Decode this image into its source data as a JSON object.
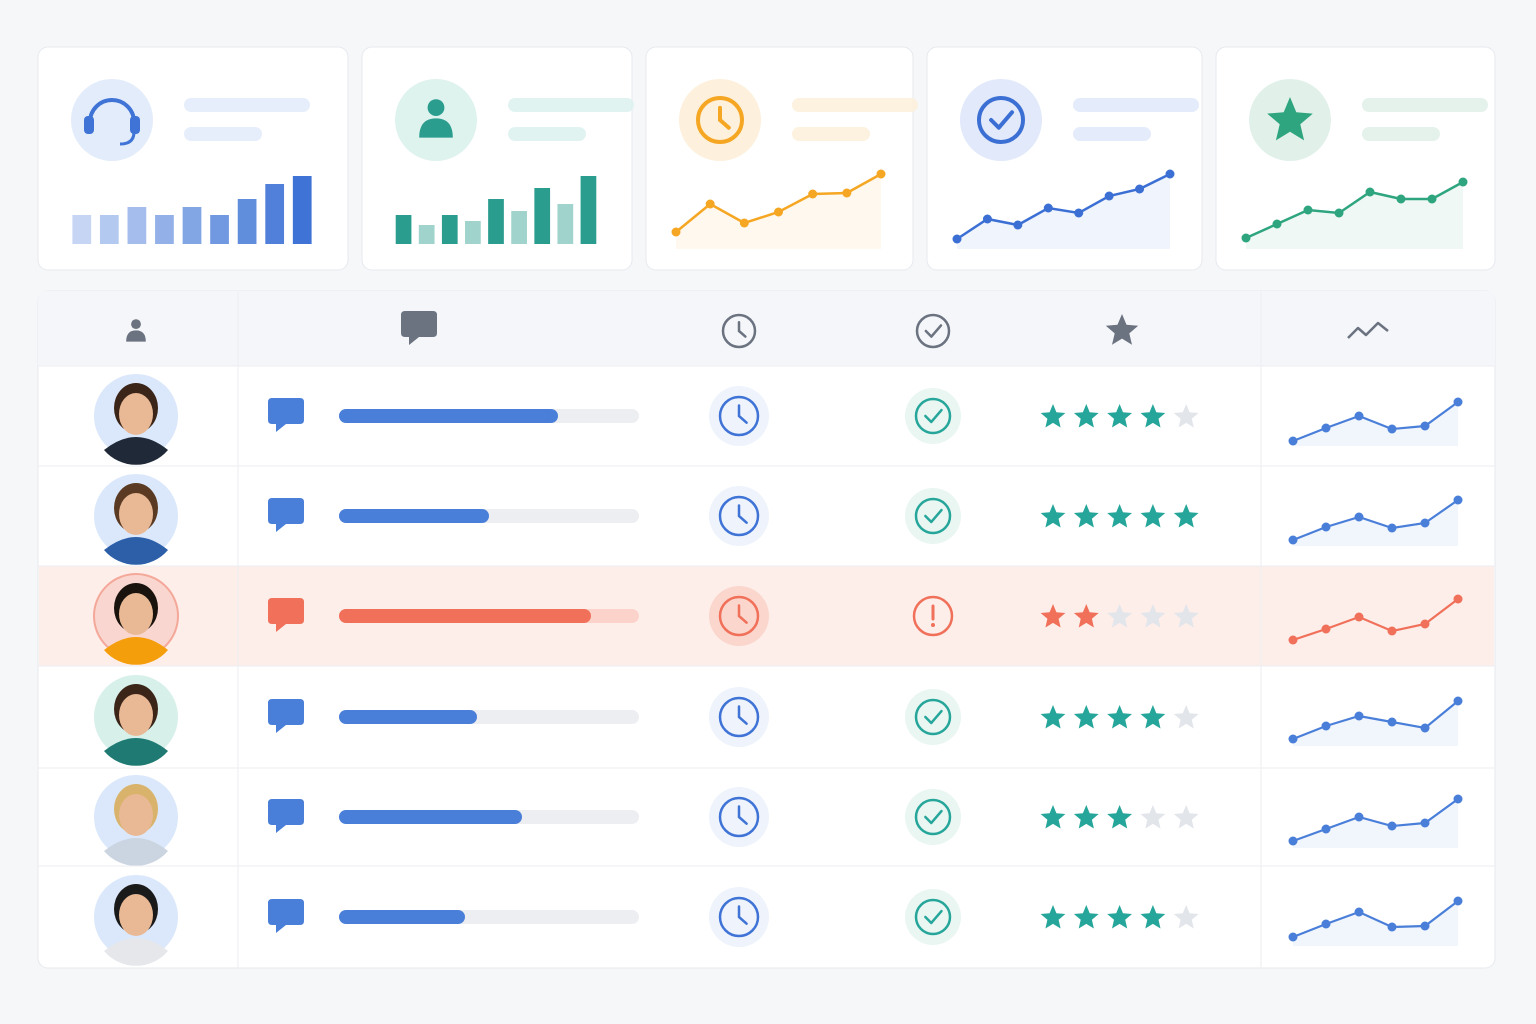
{
  "cards": [
    {
      "type": "bar",
      "color": "#3f74d6",
      "values": [
        29,
        29,
        37,
        29,
        37,
        29,
        45,
        60,
        68
      ]
    },
    {
      "type": "bar",
      "color": "#2a9d8f",
      "values": [
        29,
        19,
        29,
        23,
        45,
        33,
        56,
        40,
        68
      ]
    },
    {
      "type": "line",
      "color": "#f5a623",
      "values": [
        17,
        45,
        26,
        37,
        55,
        56,
        75
      ]
    },
    {
      "type": "line",
      "color": "#3b6fd4",
      "values": [
        10,
        30,
        24,
        41,
        36,
        53,
        60,
        75
      ]
    },
    {
      "type": "line",
      "color": "#2ea57f",
      "values": [
        11,
        25,
        39,
        36,
        57,
        50,
        50,
        67
      ]
    }
  ],
  "rows": [
    {
      "color": "#4a7fd9",
      "progress": 0.73,
      "rating": 4,
      "trend": [
        5,
        18,
        30,
        17,
        20,
        44
      ]
    },
    {
      "color": "#4a7fd9",
      "progress": 0.5,
      "rating": 5,
      "trend": [
        6,
        19,
        29,
        18,
        23,
        46
      ]
    },
    {
      "color": "#f0705a",
      "progress": 0.84,
      "rating": 2,
      "trend": [
        6,
        17,
        29,
        15,
        22,
        47
      ]
    },
    {
      "color": "#4a7fd9",
      "progress": 0.46,
      "rating": 4,
      "trend": [
        7,
        20,
        30,
        24,
        18,
        45
      ]
    },
    {
      "color": "#4a7fd9",
      "progress": 0.61,
      "rating": 3,
      "trend": [
        7,
        19,
        31,
        22,
        25,
        49
      ]
    },
    {
      "color": "#4a7fd9",
      "progress": 0.42,
      "rating": 4,
      "trend": [
        9,
        22,
        34,
        19,
        20,
        45
      ]
    }
  ]
}
